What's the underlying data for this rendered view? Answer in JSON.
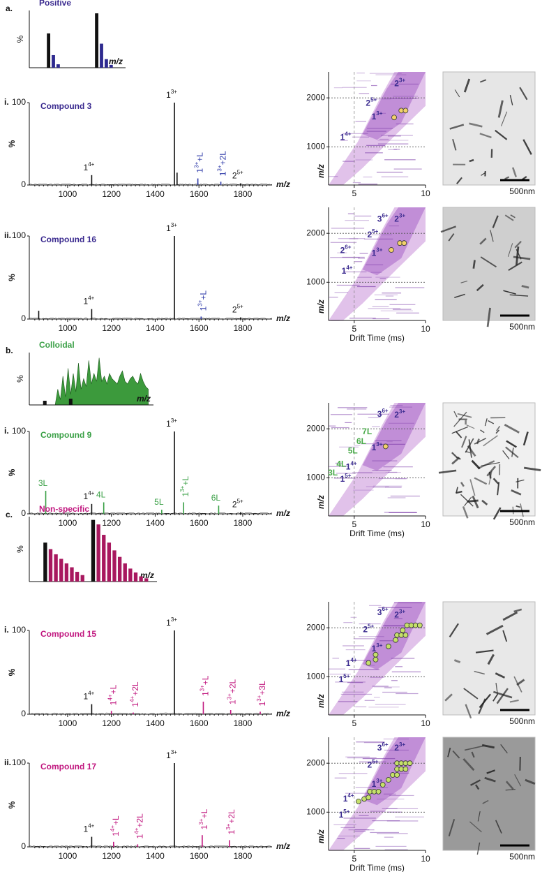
{
  "chart_data": [
    {
      "type": "bar",
      "panel": "a.",
      "title": "Positive",
      "title_color": "#3a2a8f",
      "ylabel": "%",
      "xlabel": "m/z",
      "x": [
        4,
        5,
        6,
        14,
        15,
        16,
        17
      ],
      "values": [
        60,
        22,
        6,
        95,
        42,
        15,
        5
      ],
      "colors": [
        "#111111",
        "#2e2a8f",
        "#2e2a8f",
        "#111111",
        "#2e2a8f",
        "#2e2a8f",
        "#2e2a8f"
      ],
      "xlim": [
        0,
        20
      ],
      "ylim": [
        0,
        100
      ]
    },
    {
      "type": "spectrum",
      "panel": "i.",
      "title": "Compound 3",
      "title_color": "#3a2a8f",
      "ylabel": "%",
      "xlabel": "m/z",
      "xlim": [
        825,
        1934
      ],
      "xticks": [
        1000,
        1200,
        1400,
        1600,
        1800
      ],
      "ylim": [
        0,
        100
      ],
      "yticks": [
        0,
        100
      ],
      "peaks": [
        {
          "x": 1110,
          "value": 12,
          "color": "#111111",
          "label": "1",
          "sup": "4+"
        },
        {
          "x": 1488,
          "value": 100,
          "color": "#111111",
          "label": "1",
          "sup": "3+"
        },
        {
          "x": 1500,
          "value": 15,
          "color": "#111111"
        },
        {
          "x": 1595,
          "value": 8,
          "color": "#2e3aa8",
          "label": "1",
          "sup": "3+",
          "suffix": "+L",
          "rotate": true
        },
        {
          "x": 1700,
          "value": 4,
          "color": "#2e3aa8",
          "label": "1",
          "sup": "3+",
          "suffix": "+2L",
          "rotate": true
        },
        {
          "x": 1790,
          "value": 2,
          "color": "#111111",
          "label": "2",
          "sup": "5+"
        }
      ]
    },
    {
      "type": "heatmap",
      "ylabel": "m/z",
      "xlim": [
        3.2,
        10
      ],
      "xticks": [
        5,
        10
      ],
      "ylim": [
        220,
        2530
      ],
      "yticks": [
        1000,
        2000
      ],
      "point_color": "#f2d16b",
      "species": [
        {
          "label": "2",
          "sup": "3+",
          "x": 8.2,
          "y": 2280,
          "color": "#3a2a8f"
        },
        {
          "label": "2",
          "sup": "5+",
          "x": 6.2,
          "y": 1880,
          "color": "#3a2a8f"
        },
        {
          "label": "1",
          "sup": "3+",
          "x": 6.6,
          "y": 1600,
          "color": "#3a2a8f"
        },
        {
          "label": "1",
          "sup": "4+",
          "x": 4.4,
          "y": 1180,
          "color": "#3a2a8f"
        }
      ],
      "points": [
        {
          "x": 7.8,
          "y": 1600
        },
        {
          "x": 8.3,
          "y": 1740
        },
        {
          "x": 8.6,
          "y": 1740
        }
      ]
    },
    {
      "type": "spectrum",
      "panel": "ii.",
      "title": "Compound 16",
      "title_color": "#3a2a8f",
      "ylabel": "%",
      "xlabel": "m/z",
      "xlim": [
        825,
        1934
      ],
      "xticks": [
        1000,
        1200,
        1400,
        1600,
        1800
      ],
      "ylim": [
        0,
        100
      ],
      "yticks": [
        0,
        100
      ],
      "peaks": [
        {
          "x": 868,
          "value": 10,
          "color": "#111111"
        },
        {
          "x": 1110,
          "value": 12,
          "color": "#111111",
          "label": "1",
          "sup": "4+"
        },
        {
          "x": 1488,
          "value": 100,
          "color": "#111111",
          "label": "1",
          "sup": "3+"
        },
        {
          "x": 1610,
          "value": 3,
          "color": "#2e3aa8",
          "label": "1",
          "sup": "3+",
          "suffix": "+L",
          "rotate": true
        },
        {
          "x": 1790,
          "value": 2,
          "color": "#111111",
          "label": "2",
          "sup": "5+"
        }
      ]
    },
    {
      "type": "heatmap",
      "ylabel": "m/z",
      "xlabel": "Drift Time (ms)",
      "xlim": [
        3.2,
        10
      ],
      "xticks": [
        5,
        10
      ],
      "ylim": [
        220,
        2530
      ],
      "yticks": [
        1000,
        2000
      ],
      "point_color": "#f2d16b",
      "species": [
        {
          "label": "3",
          "sup": "6+",
          "x": 7.0,
          "y": 2280,
          "color": "#3a2a8f"
        },
        {
          "label": "2",
          "sup": "3+",
          "x": 8.2,
          "y": 2280,
          "color": "#3a2a8f"
        },
        {
          "label": "2",
          "sup": "5+",
          "x": 6.3,
          "y": 1960,
          "color": "#3a2a8f"
        },
        {
          "label": "2",
          "sup": "6+",
          "x": 4.4,
          "y": 1640,
          "color": "#3a2a8f"
        },
        {
          "label": "1",
          "sup": "3+",
          "x": 6.6,
          "y": 1580,
          "color": "#3a2a8f"
        },
        {
          "label": "1",
          "sup": "4+",
          "x": 4.5,
          "y": 1220,
          "color": "#3a2a8f"
        }
      ],
      "points": [
        {
          "x": 7.6,
          "y": 1660
        },
        {
          "x": 8.2,
          "y": 1800
        },
        {
          "x": 8.5,
          "y": 1800
        }
      ]
    },
    {
      "type": "area",
      "panel": "b.",
      "title": "Colloidal",
      "title_color": "#3aa046",
      "ylabel": "%",
      "xlabel": "m/z",
      "color": "#3c9a3c",
      "xlim": [
        0,
        48
      ],
      "ylim": [
        0,
        100
      ],
      "x": [
        10,
        11,
        12,
        13,
        14,
        15,
        16,
        17,
        18,
        19,
        20,
        21,
        22,
        23,
        24,
        25,
        26,
        27,
        28,
        29,
        30,
        31,
        32,
        33,
        34,
        35,
        36,
        37,
        38,
        39,
        40,
        41,
        42,
        43,
        44,
        45,
        46
      ],
      "values": [
        0,
        30,
        10,
        55,
        15,
        70,
        20,
        60,
        25,
        80,
        30,
        50,
        35,
        85,
        40,
        60,
        45,
        90,
        45,
        55,
        40,
        60,
        50,
        45,
        40,
        55,
        65,
        45,
        40,
        50,
        55,
        45,
        40,
        60,
        45,
        35,
        30
      ],
      "bar_x": [
        6,
        16
      ],
      "bar_values": [
        8,
        12
      ],
      "bar_color": "#111111"
    },
    {
      "type": "spectrum",
      "panel": "i.",
      "title": "Compound 9",
      "title_color": "#3aa046",
      "ylabel": "%",
      "xlabel": "m/z",
      "xlim": [
        825,
        1934
      ],
      "xticks": [
        1000,
        1200,
        1400,
        1600,
        1800
      ],
      "ylim": [
        0,
        100
      ],
      "yticks": [
        0,
        100
      ],
      "peaks": [
        {
          "x": 900,
          "value": 28,
          "color": "#3aa046",
          "label": "3L"
        },
        {
          "x": 1110,
          "value": 12,
          "color": "#111111",
          "label": "1",
          "sup": "4+"
        },
        {
          "x": 1165,
          "value": 14,
          "color": "#3aa046",
          "label": "4L"
        },
        {
          "x": 1430,
          "value": 5,
          "color": "#3aa046",
          "label": "5L"
        },
        {
          "x": 1488,
          "value": 100,
          "color": "#111111",
          "label": "1",
          "sup": "3+"
        },
        {
          "x": 1530,
          "value": 14,
          "color": "#3aa046",
          "label": "1",
          "sup": "3+",
          "suffix": "+L",
          "rotate": true
        },
        {
          "x": 1690,
          "value": 10,
          "color": "#3aa046",
          "label": "6L"
        },
        {
          "x": 1790,
          "value": 2,
          "color": "#111111",
          "label": "2",
          "sup": "5+"
        }
      ]
    },
    {
      "type": "heatmap",
      "ylabel": "m/z",
      "xlabel": "Drift Time (ms)",
      "xlim": [
        3.2,
        10
      ],
      "xticks": [
        5,
        10
      ],
      "ylim": [
        220,
        2530
      ],
      "yticks": [
        1000,
        2000
      ],
      "point_color": "#f2d16b",
      "species": [
        {
          "label": "3",
          "sup": "6+",
          "x": 7.0,
          "y": 2290,
          "color": "#3a2a8f"
        },
        {
          "label": "2",
          "sup": "3+",
          "x": 8.2,
          "y": 2270,
          "color": "#3a2a8f"
        },
        {
          "label": "7L",
          "x": 5.9,
          "y": 1930,
          "color": "#4aab4a"
        },
        {
          "label": "6L",
          "x": 5.5,
          "y": 1730,
          "color": "#4aab4a"
        },
        {
          "label": "5L",
          "x": 4.9,
          "y": 1540,
          "color": "#4aab4a"
        },
        {
          "label": "1",
          "sup": "3+",
          "x": 6.6,
          "y": 1600,
          "color": "#3a2a8f"
        },
        {
          "label": "4L",
          "x": 4.1,
          "y": 1270,
          "color": "#4aab4a"
        },
        {
          "label": "1",
          "sup": "4+",
          "x": 4.8,
          "y": 1210,
          "color": "#3a2a8f"
        },
        {
          "label": "3L",
          "x": 3.5,
          "y": 1090,
          "color": "#4aab4a"
        },
        {
          "label": "1",
          "sup": "5+",
          "x": 4.4,
          "y": 960,
          "color": "#3a2a8f"
        }
      ],
      "points": [
        {
          "x": 7.2,
          "y": 1640
        }
      ]
    },
    {
      "type": "bar",
      "panel": "c.",
      "title": "Non-specific",
      "title_color": "#c1177f",
      "ylabel": "%",
      "xlabel": "m/z",
      "x": [
        3,
        4,
        5,
        6,
        7,
        8,
        9,
        10,
        12,
        13,
        14,
        15,
        16,
        17,
        18,
        19,
        20,
        21,
        22
      ],
      "values": [
        60,
        50,
        42,
        35,
        28,
        22,
        15,
        10,
        95,
        88,
        72,
        60,
        48,
        38,
        28,
        20,
        14,
        8,
        5
      ],
      "colors": [
        "#111111",
        "#a8185f",
        "#a8185f",
        "#a8185f",
        "#a8185f",
        "#a8185f",
        "#a8185f",
        "#a8185f",
        "#111111",
        "#a8185f",
        "#a8185f",
        "#a8185f",
        "#a8185f",
        "#a8185f",
        "#a8185f",
        "#a8185f",
        "#a8185f",
        "#a8185f",
        "#a8185f"
      ],
      "xlim": [
        0,
        24
      ],
      "ylim": [
        0,
        100
      ]
    },
    {
      "type": "spectrum",
      "panel": "i.",
      "title": "Compound 15",
      "title_color": "#c1177f",
      "ylabel": "%",
      "xlabel": "m/z",
      "xlim": [
        825,
        1934
      ],
      "xticks": [
        1000,
        1200,
        1400,
        1600,
        1800
      ],
      "ylim": [
        0,
        100
      ],
      "yticks": [
        0,
        100
      ],
      "peaks": [
        {
          "x": 1110,
          "value": 12,
          "color": "#111111",
          "label": "1",
          "sup": "4+"
        },
        {
          "x": 1200,
          "value": 4,
          "color": "#c1177f",
          "label": "1",
          "sup": "4+",
          "suffix": "+L",
          "rotate": true
        },
        {
          "x": 1300,
          "value": 2,
          "color": "#c1177f",
          "label": "1",
          "sup": "4+",
          "suffix": "+2L",
          "rotate": true
        },
        {
          "x": 1488,
          "value": 100,
          "color": "#111111",
          "label": "1",
          "sup": "3+"
        },
        {
          "x": 1620,
          "value": 15,
          "color": "#c1177f",
          "label": "1",
          "sup": "3+",
          "suffix": "+L",
          "rotate": true
        },
        {
          "x": 1745,
          "value": 5,
          "color": "#c1177f",
          "label": "1",
          "sup": "3+",
          "suffix": "+2L",
          "rotate": true
        },
        {
          "x": 1880,
          "value": 3,
          "color": "#c1177f",
          "label": "1",
          "sup": "3+",
          "suffix": "+3L",
          "rotate": true
        }
      ]
    },
    {
      "type": "heatmap",
      "ylabel": "m/z",
      "xlim": [
        3.2,
        10
      ],
      "xticks": [
        5,
        10
      ],
      "ylim": [
        220,
        2530
      ],
      "yticks": [
        1000,
        2000
      ],
      "point_color": "#c5e06a",
      "species": [
        {
          "label": "3",
          "sup": "6+",
          "x": 7.0,
          "y": 2300,
          "color": "#3a2a8f"
        },
        {
          "label": "2",
          "sup": "3+",
          "x": 8.2,
          "y": 2250,
          "color": "#3a2a8f"
        },
        {
          "label": "2",
          "sup": "5+",
          "x": 6.0,
          "y": 1950,
          "color": "#3a2a8f"
        },
        {
          "label": "1",
          "sup": "3+",
          "x": 6.6,
          "y": 1560,
          "color": "#3a2a8f"
        },
        {
          "label": "1",
          "sup": "4+",
          "x": 4.8,
          "y": 1260,
          "color": "#3a2a8f"
        },
        {
          "label": "1",
          "sup": "5+",
          "x": 4.3,
          "y": 930,
          "color": "#3a2a8f"
        }
      ],
      "points": [
        {
          "x": 6.0,
          "y": 1280
        },
        {
          "x": 6.5,
          "y": 1350
        },
        {
          "x": 6.5,
          "y": 1450
        },
        {
          "x": 7.4,
          "y": 1620
        },
        {
          "x": 7.9,
          "y": 1750
        },
        {
          "x": 8.0,
          "y": 1850
        },
        {
          "x": 8.3,
          "y": 1850
        },
        {
          "x": 8.6,
          "y": 1850
        },
        {
          "x": 8.4,
          "y": 1950
        },
        {
          "x": 8.7,
          "y": 2050
        },
        {
          "x": 9.0,
          "y": 2050
        },
        {
          "x": 9.3,
          "y": 2050
        },
        {
          "x": 9.6,
          "y": 2050
        }
      ]
    },
    {
      "type": "spectrum",
      "panel": "ii.",
      "title": "Compound 17",
      "title_color": "#c1177f",
      "ylabel": "%",
      "xlabel": "m/z",
      "xlim": [
        825,
        1934
      ],
      "xticks": [
        1000,
        1200,
        1400,
        1600,
        1800
      ],
      "ylim": [
        0,
        100
      ],
      "yticks": [
        0,
        100
      ],
      "peaks": [
        {
          "x": 1110,
          "value": 12,
          "color": "#111111",
          "label": "1",
          "sup": "4+"
        },
        {
          "x": 1210,
          "value": 6,
          "color": "#c1177f",
          "label": "1",
          "sup": "4+",
          "suffix": "+L",
          "rotate": true
        },
        {
          "x": 1320,
          "value": 3,
          "color": "#c1177f",
          "label": "1",
          "sup": "4+",
          "suffix": "+2L",
          "rotate": true
        },
        {
          "x": 1488,
          "value": 100,
          "color": "#111111",
          "label": "1",
          "sup": "3+"
        },
        {
          "x": 1615,
          "value": 14,
          "color": "#c1177f",
          "label": "1",
          "sup": "3+",
          "suffix": "+L",
          "rotate": true
        },
        {
          "x": 1740,
          "value": 8,
          "color": "#c1177f",
          "label": "1",
          "sup": "3+",
          "suffix": "+2L",
          "rotate": true
        }
      ]
    },
    {
      "type": "heatmap",
      "ylabel": "m/z",
      "xlabel": "Drift Time (ms)",
      "xlim": [
        3.2,
        10
      ],
      "xticks": [
        5,
        10
      ],
      "ylim": [
        220,
        2530
      ],
      "yticks": [
        1000,
        2000
      ],
      "point_color": "#c5e06a",
      "species": [
        {
          "label": "3",
          "sup": "6+",
          "x": 7.0,
          "y": 2300,
          "color": "#3a2a8f"
        },
        {
          "label": "2",
          "sup": "3+",
          "x": 8.2,
          "y": 2300,
          "color": "#3a2a8f"
        },
        {
          "label": "2",
          "sup": "5+",
          "x": 6.3,
          "y": 1950,
          "color": "#3a2a8f"
        },
        {
          "label": "1",
          "sup": "3+",
          "x": 6.6,
          "y": 1560,
          "color": "#3a2a8f"
        },
        {
          "label": "1",
          "sup": "4+",
          "x": 4.6,
          "y": 1260,
          "color": "#3a2a8f"
        },
        {
          "label": "1",
          "sup": "5+",
          "x": 4.3,
          "y": 930,
          "color": "#3a2a8f"
        }
      ],
      "points": [
        {
          "x": 5.3,
          "y": 1220
        },
        {
          "x": 5.7,
          "y": 1270
        },
        {
          "x": 6.0,
          "y": 1300
        },
        {
          "x": 6.1,
          "y": 1420
        },
        {
          "x": 6.4,
          "y": 1420
        },
        {
          "x": 6.7,
          "y": 1420
        },
        {
          "x": 7.0,
          "y": 1560
        },
        {
          "x": 7.4,
          "y": 1660
        },
        {
          "x": 7.7,
          "y": 1760
        },
        {
          "x": 8.0,
          "y": 1760
        },
        {
          "x": 8.0,
          "y": 1880
        },
        {
          "x": 8.3,
          "y": 1880
        },
        {
          "x": 8.6,
          "y": 1880
        },
        {
          "x": 8.0,
          "y": 2000
        },
        {
          "x": 8.3,
          "y": 2000
        },
        {
          "x": 8.6,
          "y": 2000
        },
        {
          "x": 8.9,
          "y": 2000
        }
      ]
    }
  ],
  "images": [
    {
      "scale_label": "500nm"
    },
    {
      "scale_label": "500nm"
    },
    {
      "scale_label": "500nm"
    },
    {
      "scale_label": "500nm"
    },
    {
      "scale_label": "500nm"
    }
  ]
}
